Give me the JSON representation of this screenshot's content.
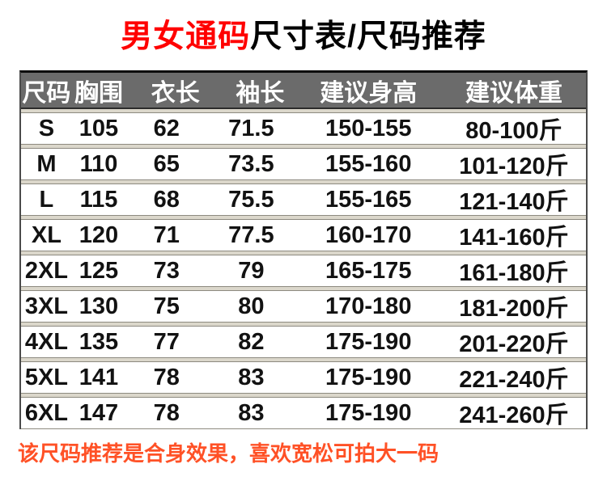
{
  "title": {
    "highlight": "男女通码",
    "rest": "尺寸表/尺码推荐"
  },
  "table": {
    "headers": [
      "尺码",
      "胸围",
      "衣长",
      "袖长",
      "建议身高",
      "建议体重"
    ],
    "rows": [
      [
        "S",
        "105",
        "62",
        "71.5",
        "150-155",
        "80-100斤"
      ],
      [
        "M",
        "110",
        "65",
        "73.5",
        "155-160",
        "101-120斤"
      ],
      [
        "L",
        "115",
        "68",
        "75.5",
        "155-165",
        "121-140斤"
      ],
      [
        "XL",
        "120",
        "71",
        "77.5",
        "160-170",
        "141-160斤"
      ],
      [
        "2XL",
        "125",
        "73",
        "79",
        "165-175",
        "161-180斤"
      ],
      [
        "3XL",
        "130",
        "75",
        "80",
        "170-180",
        "181-200斤"
      ],
      [
        "4XL",
        "135",
        "77",
        "82",
        "175-190",
        "201-220斤"
      ],
      [
        "5XL",
        "141",
        "78",
        "83",
        "175-190",
        "221-240斤"
      ],
      [
        "6XL",
        "147",
        "78",
        "83",
        "175-190",
        "241-260斤"
      ]
    ]
  },
  "footer": {
    "note": "该尺码推荐是合身效果，喜欢宽松可拍大一码"
  },
  "colors": {
    "title_highlight": "#ff0000",
    "header_bg": "#6b6b6b",
    "header_text": "#ffffff",
    "row_bg": "#ffffff",
    "gap_bg": "#dbd7cb",
    "border_dark": "#4a4a4a",
    "note_text": "#ff5126"
  }
}
